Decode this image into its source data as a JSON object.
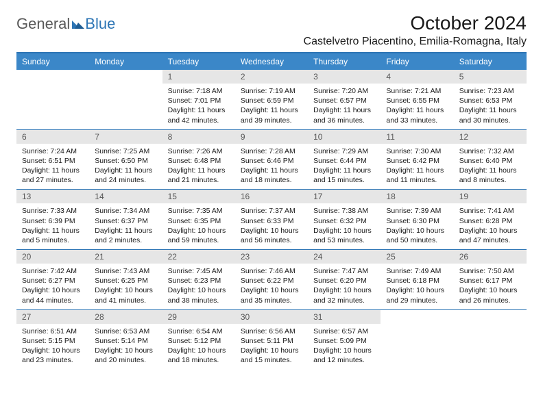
{
  "brand": {
    "part1": "General",
    "part2": "Blue"
  },
  "title": "October 2024",
  "location": "Castelvetro Piacentino, Emilia-Romagna, Italy",
  "colors": {
    "header_bg": "#3b87c8",
    "rule": "#2d75b5",
    "daynum_bg": "#e6e6e6",
    "text": "#1a1a1a",
    "logo_gray": "#595959",
    "logo_blue": "#2d75b5"
  },
  "daynames": [
    "Sunday",
    "Monday",
    "Tuesday",
    "Wednesday",
    "Thursday",
    "Friday",
    "Saturday"
  ],
  "weeks": [
    [
      null,
      null,
      {
        "n": "1",
        "sr": "7:18 AM",
        "ss": "7:01 PM",
        "dl": "11 hours and 42 minutes."
      },
      {
        "n": "2",
        "sr": "7:19 AM",
        "ss": "6:59 PM",
        "dl": "11 hours and 39 minutes."
      },
      {
        "n": "3",
        "sr": "7:20 AM",
        "ss": "6:57 PM",
        "dl": "11 hours and 36 minutes."
      },
      {
        "n": "4",
        "sr": "7:21 AM",
        "ss": "6:55 PM",
        "dl": "11 hours and 33 minutes."
      },
      {
        "n": "5",
        "sr": "7:23 AM",
        "ss": "6:53 PM",
        "dl": "11 hours and 30 minutes."
      }
    ],
    [
      {
        "n": "6",
        "sr": "7:24 AM",
        "ss": "6:51 PM",
        "dl": "11 hours and 27 minutes."
      },
      {
        "n": "7",
        "sr": "7:25 AM",
        "ss": "6:50 PM",
        "dl": "11 hours and 24 minutes."
      },
      {
        "n": "8",
        "sr": "7:26 AM",
        "ss": "6:48 PM",
        "dl": "11 hours and 21 minutes."
      },
      {
        "n": "9",
        "sr": "7:28 AM",
        "ss": "6:46 PM",
        "dl": "11 hours and 18 minutes."
      },
      {
        "n": "10",
        "sr": "7:29 AM",
        "ss": "6:44 PM",
        "dl": "11 hours and 15 minutes."
      },
      {
        "n": "11",
        "sr": "7:30 AM",
        "ss": "6:42 PM",
        "dl": "11 hours and 11 minutes."
      },
      {
        "n": "12",
        "sr": "7:32 AM",
        "ss": "6:40 PM",
        "dl": "11 hours and 8 minutes."
      }
    ],
    [
      {
        "n": "13",
        "sr": "7:33 AM",
        "ss": "6:39 PM",
        "dl": "11 hours and 5 minutes."
      },
      {
        "n": "14",
        "sr": "7:34 AM",
        "ss": "6:37 PM",
        "dl": "11 hours and 2 minutes."
      },
      {
        "n": "15",
        "sr": "7:35 AM",
        "ss": "6:35 PM",
        "dl": "10 hours and 59 minutes."
      },
      {
        "n": "16",
        "sr": "7:37 AM",
        "ss": "6:33 PM",
        "dl": "10 hours and 56 minutes."
      },
      {
        "n": "17",
        "sr": "7:38 AM",
        "ss": "6:32 PM",
        "dl": "10 hours and 53 minutes."
      },
      {
        "n": "18",
        "sr": "7:39 AM",
        "ss": "6:30 PM",
        "dl": "10 hours and 50 minutes."
      },
      {
        "n": "19",
        "sr": "7:41 AM",
        "ss": "6:28 PM",
        "dl": "10 hours and 47 minutes."
      }
    ],
    [
      {
        "n": "20",
        "sr": "7:42 AM",
        "ss": "6:27 PM",
        "dl": "10 hours and 44 minutes."
      },
      {
        "n": "21",
        "sr": "7:43 AM",
        "ss": "6:25 PM",
        "dl": "10 hours and 41 minutes."
      },
      {
        "n": "22",
        "sr": "7:45 AM",
        "ss": "6:23 PM",
        "dl": "10 hours and 38 minutes."
      },
      {
        "n": "23",
        "sr": "7:46 AM",
        "ss": "6:22 PM",
        "dl": "10 hours and 35 minutes."
      },
      {
        "n": "24",
        "sr": "7:47 AM",
        "ss": "6:20 PM",
        "dl": "10 hours and 32 minutes."
      },
      {
        "n": "25",
        "sr": "7:49 AM",
        "ss": "6:18 PM",
        "dl": "10 hours and 29 minutes."
      },
      {
        "n": "26",
        "sr": "7:50 AM",
        "ss": "6:17 PM",
        "dl": "10 hours and 26 minutes."
      }
    ],
    [
      {
        "n": "27",
        "sr": "6:51 AM",
        "ss": "5:15 PM",
        "dl": "10 hours and 23 minutes."
      },
      {
        "n": "28",
        "sr": "6:53 AM",
        "ss": "5:14 PM",
        "dl": "10 hours and 20 minutes."
      },
      {
        "n": "29",
        "sr": "6:54 AM",
        "ss": "5:12 PM",
        "dl": "10 hours and 18 minutes."
      },
      {
        "n": "30",
        "sr": "6:56 AM",
        "ss": "5:11 PM",
        "dl": "10 hours and 15 minutes."
      },
      {
        "n": "31",
        "sr": "6:57 AM",
        "ss": "5:09 PM",
        "dl": "10 hours and 12 minutes."
      },
      null,
      null
    ]
  ],
  "labels": {
    "sunrise": "Sunrise:",
    "sunset": "Sunset:",
    "daylight": "Daylight:"
  }
}
